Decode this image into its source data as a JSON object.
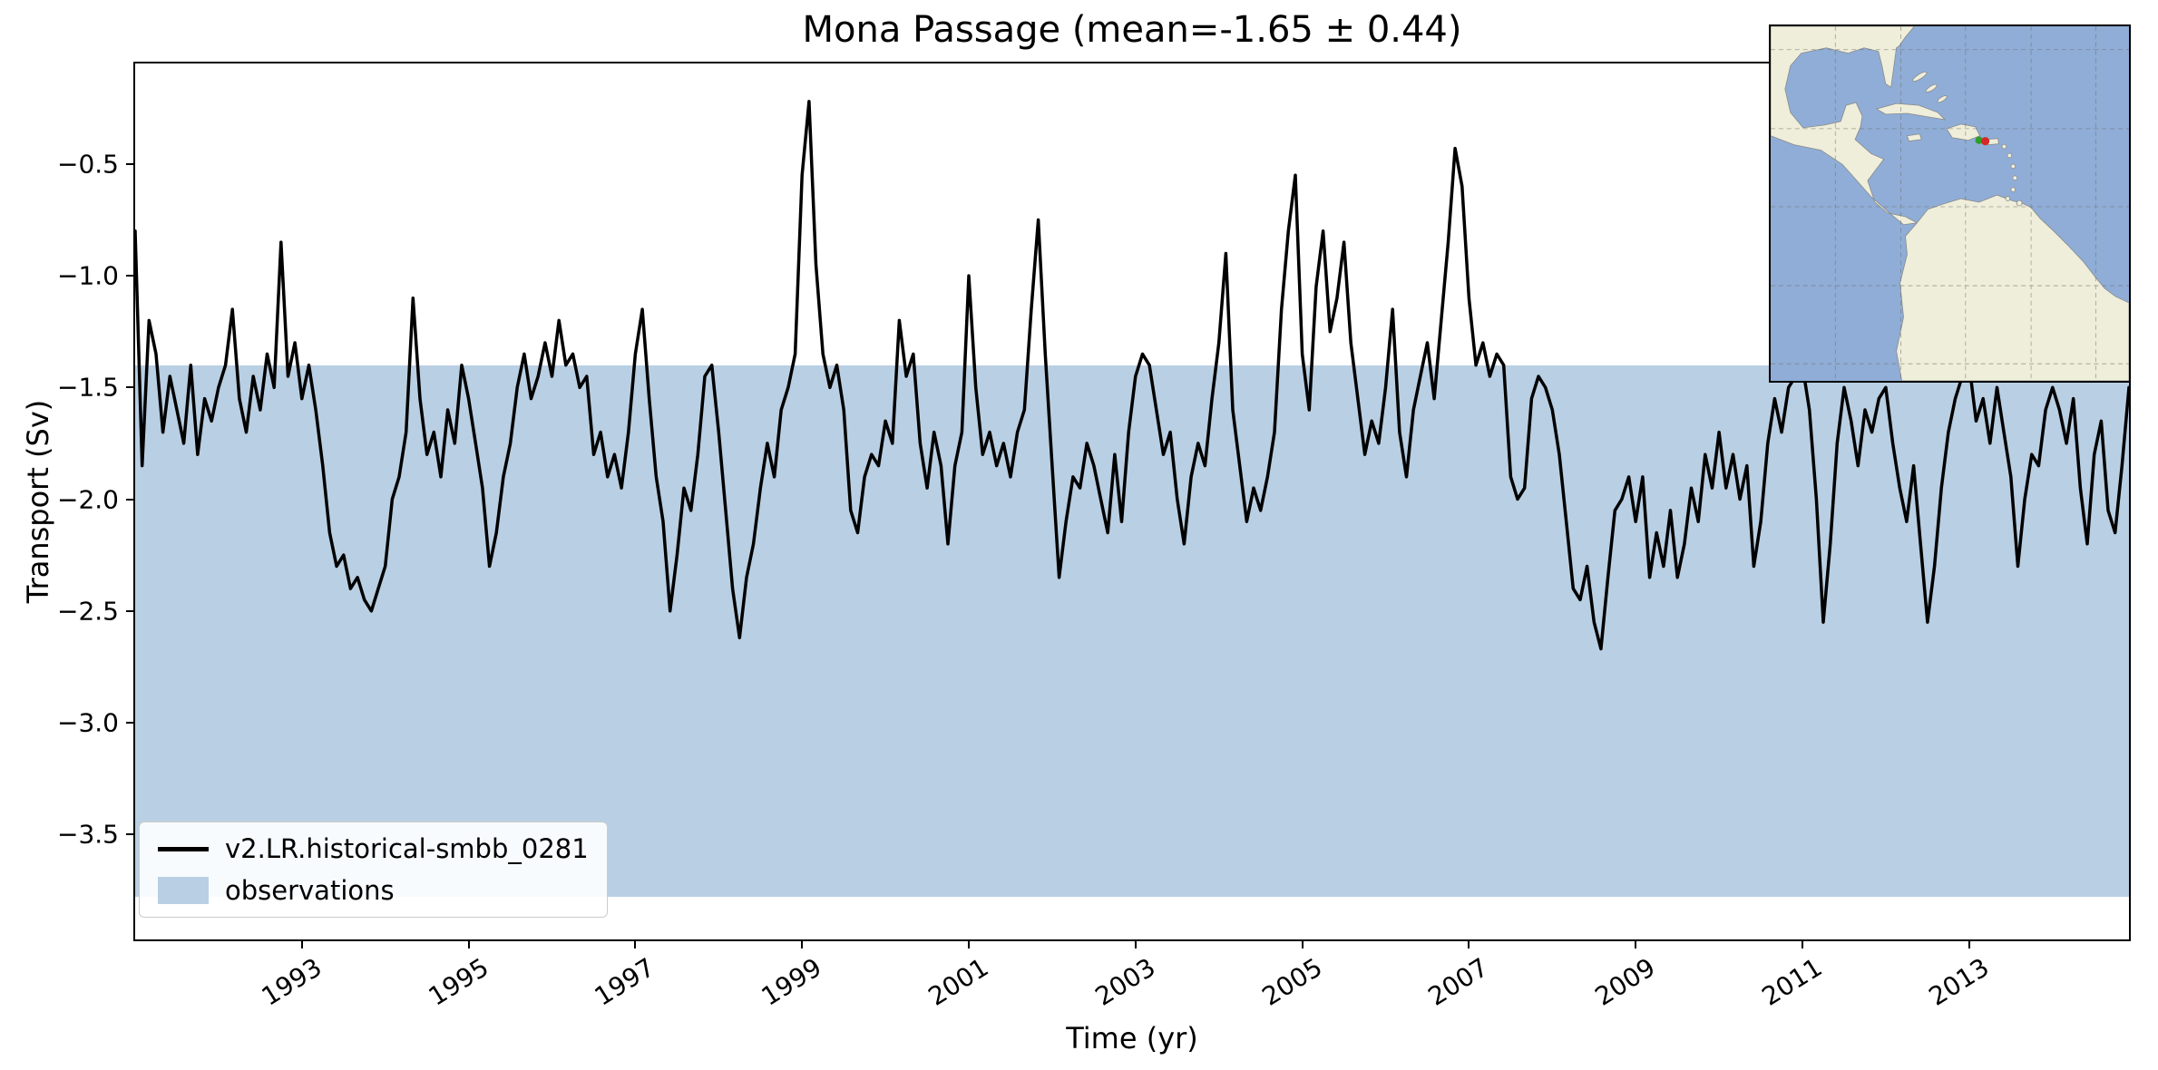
{
  "title": "Mona Passage (mean=-1.65 ± 0.44)",
  "axes": {
    "xlabel": "Time (yr)",
    "ylabel": "Transport (Sv)"
  },
  "legend": {
    "entries": [
      {
        "type": "line",
        "label": "v2.LR.historical-smbb_0281"
      },
      {
        "type": "band",
        "label": "observations"
      }
    ]
  },
  "colors": {
    "line": "#000000",
    "band": "#b9cfe3",
    "map_ocean": "#8fadd6",
    "map_land": "#efeeda",
    "marker_red": "#d62728",
    "marker_green": "#2ca02c"
  },
  "chart_data": {
    "type": "line",
    "title": "Mona Passage (mean=-1.65 ± 0.44)",
    "xlabel": "Time (yr)",
    "ylabel": "Transport (Sv)",
    "xlim": [
      1991.0,
      2014.9167
    ],
    "ylim": [
      -3.97,
      -0.05
    ],
    "grid": false,
    "legend_position": "lower left",
    "xticks": [
      1993,
      1995,
      1997,
      1999,
      2001,
      2003,
      2005,
      2007,
      2009,
      2011,
      2013
    ],
    "xtick_labels": [
      "1993",
      "1995",
      "1997",
      "1999",
      "2001",
      "2003",
      "2005",
      "2007",
      "2009",
      "2011",
      "2013"
    ],
    "yticks": [
      -0.5,
      -1.0,
      -1.5,
      -2.0,
      -2.5,
      -3.0,
      -3.5
    ],
    "ytick_labels": [
      "−0.5",
      "−1.0",
      "−1.5",
      "−2.0",
      "−2.5",
      "−3.0",
      "−3.5"
    ],
    "band": {
      "label": "observations",
      "top": -1.4,
      "bottom": -3.78
    },
    "series": [
      {
        "name": "v2.LR.historical-smbb_0281",
        "x_start": 1991.0,
        "x_step": 0.0833333,
        "values": [
          -0.8,
          -1.85,
          -1.2,
          -1.35,
          -1.7,
          -1.45,
          -1.6,
          -1.75,
          -1.4,
          -1.8,
          -1.55,
          -1.65,
          -1.5,
          -1.4,
          -1.15,
          -1.55,
          -1.7,
          -1.45,
          -1.6,
          -1.35,
          -1.5,
          -0.85,
          -1.45,
          -1.3,
          -1.55,
          -1.4,
          -1.6,
          -1.85,
          -2.15,
          -2.3,
          -2.25,
          -2.4,
          -2.35,
          -2.45,
          -2.5,
          -2.4,
          -2.3,
          -2.0,
          -1.9,
          -1.7,
          -1.1,
          -1.55,
          -1.8,
          -1.7,
          -1.9,
          -1.6,
          -1.75,
          -1.4,
          -1.55,
          -1.75,
          -1.95,
          -2.3,
          -2.15,
          -1.9,
          -1.75,
          -1.5,
          -1.35,
          -1.55,
          -1.45,
          -1.3,
          -1.45,
          -1.2,
          -1.4,
          -1.35,
          -1.5,
          -1.45,
          -1.8,
          -1.7,
          -1.9,
          -1.8,
          -1.95,
          -1.7,
          -1.35,
          -1.15,
          -1.55,
          -1.9,
          -2.1,
          -2.5,
          -2.25,
          -1.95,
          -2.05,
          -1.8,
          -1.45,
          -1.4,
          -1.7,
          -2.05,
          -2.4,
          -2.62,
          -2.35,
          -2.2,
          -1.95,
          -1.75,
          -1.9,
          -1.6,
          -1.5,
          -1.35,
          -0.55,
          -0.22,
          -0.95,
          -1.35,
          -1.5,
          -1.4,
          -1.6,
          -2.05,
          -2.15,
          -1.9,
          -1.8,
          -1.85,
          -1.65,
          -1.75,
          -1.2,
          -1.45,
          -1.35,
          -1.75,
          -1.95,
          -1.7,
          -1.85,
          -2.2,
          -1.85,
          -1.7,
          -1.0,
          -1.5,
          -1.8,
          -1.7,
          -1.85,
          -1.75,
          -1.9,
          -1.7,
          -1.6,
          -1.15,
          -0.75,
          -1.35,
          -1.85,
          -2.35,
          -2.1,
          -1.9,
          -1.95,
          -1.75,
          -1.85,
          -2.0,
          -2.15,
          -1.8,
          -2.1,
          -1.7,
          -1.45,
          -1.35,
          -1.4,
          -1.6,
          -1.8,
          -1.7,
          -2.0,
          -2.2,
          -1.9,
          -1.75,
          -1.85,
          -1.55,
          -1.3,
          -0.9,
          -1.6,
          -1.85,
          -2.1,
          -1.95,
          -2.05,
          -1.9,
          -1.7,
          -1.15,
          -0.8,
          -0.55,
          -1.35,
          -1.6,
          -1.05,
          -0.8,
          -1.25,
          -1.1,
          -0.85,
          -1.3,
          -1.55,
          -1.8,
          -1.65,
          -1.75,
          -1.5,
          -1.15,
          -1.7,
          -1.9,
          -1.6,
          -1.45,
          -1.3,
          -1.55,
          -1.2,
          -0.85,
          -0.43,
          -0.6,
          -1.1,
          -1.4,
          -1.3,
          -1.45,
          -1.35,
          -1.4,
          -1.9,
          -2.0,
          -1.95,
          -1.55,
          -1.45,
          -1.5,
          -1.6,
          -1.8,
          -2.1,
          -2.4,
          -2.45,
          -2.3,
          -2.55,
          -2.67,
          -2.35,
          -2.05,
          -2.0,
          -1.9,
          -2.1,
          -1.9,
          -2.35,
          -2.15,
          -2.3,
          -2.05,
          -2.35,
          -2.2,
          -1.95,
          -2.1,
          -1.8,
          -1.95,
          -1.7,
          -1.95,
          -1.8,
          -2.0,
          -1.85,
          -2.3,
          -2.1,
          -1.75,
          -1.55,
          -1.7,
          -1.5,
          -1.45,
          -1.4,
          -1.6,
          -2.0,
          -2.55,
          -2.2,
          -1.75,
          -1.5,
          -1.65,
          -1.85,
          -1.6,
          -1.7,
          -1.55,
          -1.5,
          -1.75,
          -1.95,
          -2.1,
          -1.85,
          -2.2,
          -2.55,
          -2.3,
          -1.95,
          -1.7,
          -1.55,
          -1.45,
          -1.4,
          -1.65,
          -1.55,
          -1.75,
          -1.5,
          -1.7,
          -1.9,
          -2.3,
          -2.0,
          -1.8,
          -1.85,
          -1.6,
          -1.5,
          -1.6,
          -1.75,
          -1.55,
          -1.95,
          -2.2,
          -1.8,
          -1.65,
          -2.05,
          -2.15,
          -1.85,
          -1.5
        ]
      }
    ]
  },
  "inset_map": {
    "markers": [
      {
        "name": "green-location-marker",
        "color": "#2ca02c"
      },
      {
        "name": "red-location-marker",
        "color": "#d62728"
      }
    ]
  }
}
